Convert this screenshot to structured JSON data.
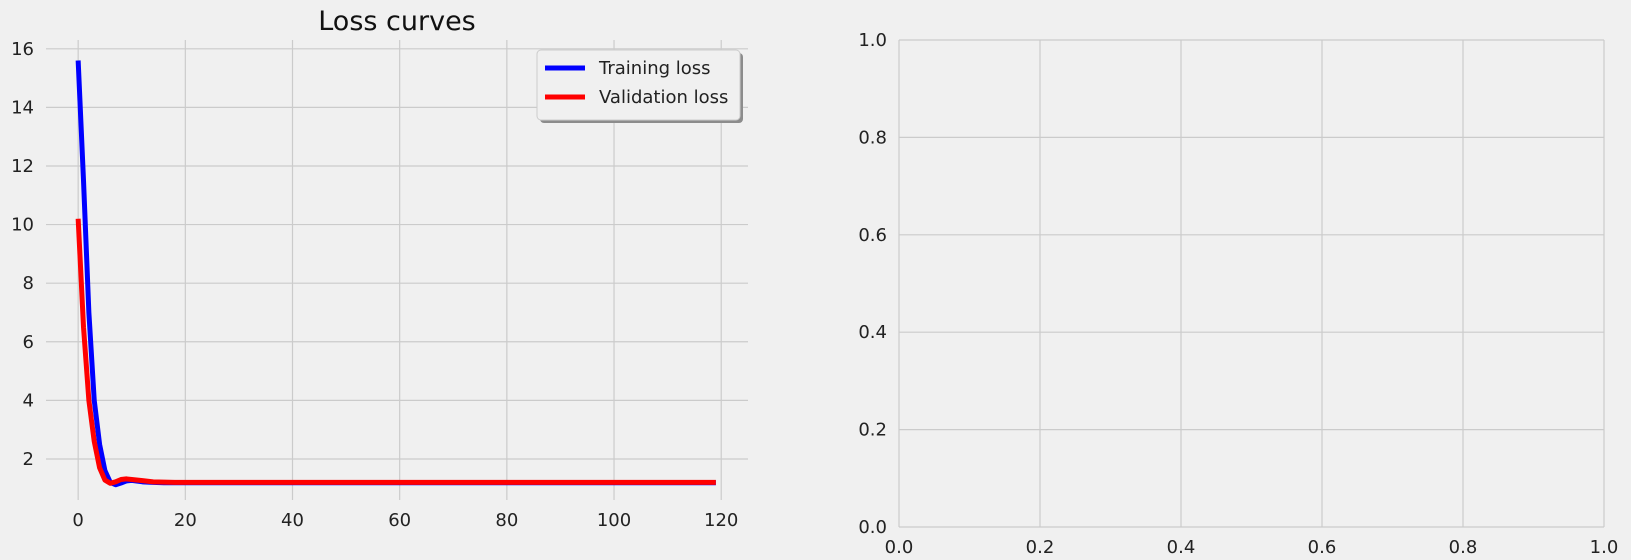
{
  "chart_data": [
    {
      "type": "line",
      "title": "Loss curves",
      "xlabel": "",
      "ylabel": "",
      "xlim": [
        -6,
        125
      ],
      "ylim": [
        0.6,
        16.3
      ],
      "grid": true,
      "legend": "top-right",
      "x_ticks": [
        0,
        20,
        40,
        60,
        80,
        100,
        120
      ],
      "y_ticks": [
        2,
        4,
        6,
        8,
        10,
        12,
        14,
        16
      ],
      "series": [
        {
          "name": "Training loss",
          "color": "#0000ff",
          "x": [
            0,
            1,
            2,
            3,
            4,
            5,
            6,
            7,
            8,
            9,
            10,
            12,
            14,
            16,
            18,
            20,
            30,
            40,
            50,
            60,
            70,
            80,
            90,
            100,
            110,
            119
          ],
          "y": [
            15.6,
            11.5,
            7.0,
            4.0,
            2.5,
            1.6,
            1.2,
            1.12,
            1.18,
            1.25,
            1.27,
            1.22,
            1.2,
            1.19,
            1.19,
            1.19,
            1.19,
            1.19,
            1.19,
            1.19,
            1.19,
            1.19,
            1.19,
            1.19,
            1.19,
            1.19
          ]
        },
        {
          "name": "Validation loss",
          "color": "#ff0000",
          "x": [
            0,
            1,
            2,
            3,
            4,
            5,
            6,
            7,
            8,
            9,
            10,
            12,
            14,
            16,
            18,
            20,
            30,
            40,
            50,
            60,
            70,
            80,
            90,
            100,
            110,
            119
          ],
          "y": [
            10.2,
            6.5,
            4.0,
            2.6,
            1.7,
            1.28,
            1.17,
            1.22,
            1.3,
            1.32,
            1.3,
            1.26,
            1.22,
            1.21,
            1.2,
            1.2,
            1.2,
            1.2,
            1.2,
            1.2,
            1.2,
            1.2,
            1.2,
            1.2,
            1.2,
            1.2
          ]
        }
      ]
    },
    {
      "type": "line",
      "title": "",
      "xlabel": "",
      "ylabel": "",
      "xlim": [
        0,
        1
      ],
      "ylim": [
        0,
        1
      ],
      "grid": true,
      "x_ticks": [
        0.0,
        0.2,
        0.4,
        0.6,
        0.8,
        1.0
      ],
      "x_tick_labels": [
        "0.0",
        "0.2",
        "0.4",
        "0.6",
        "0.8",
        "1.0"
      ],
      "y_ticks": [
        0.0,
        0.2,
        0.4,
        0.6,
        0.8,
        1.0
      ],
      "y_tick_labels": [
        "0.0",
        "0.2",
        "0.4",
        "0.6",
        "0.8",
        "1.0"
      ],
      "series": []
    }
  ]
}
